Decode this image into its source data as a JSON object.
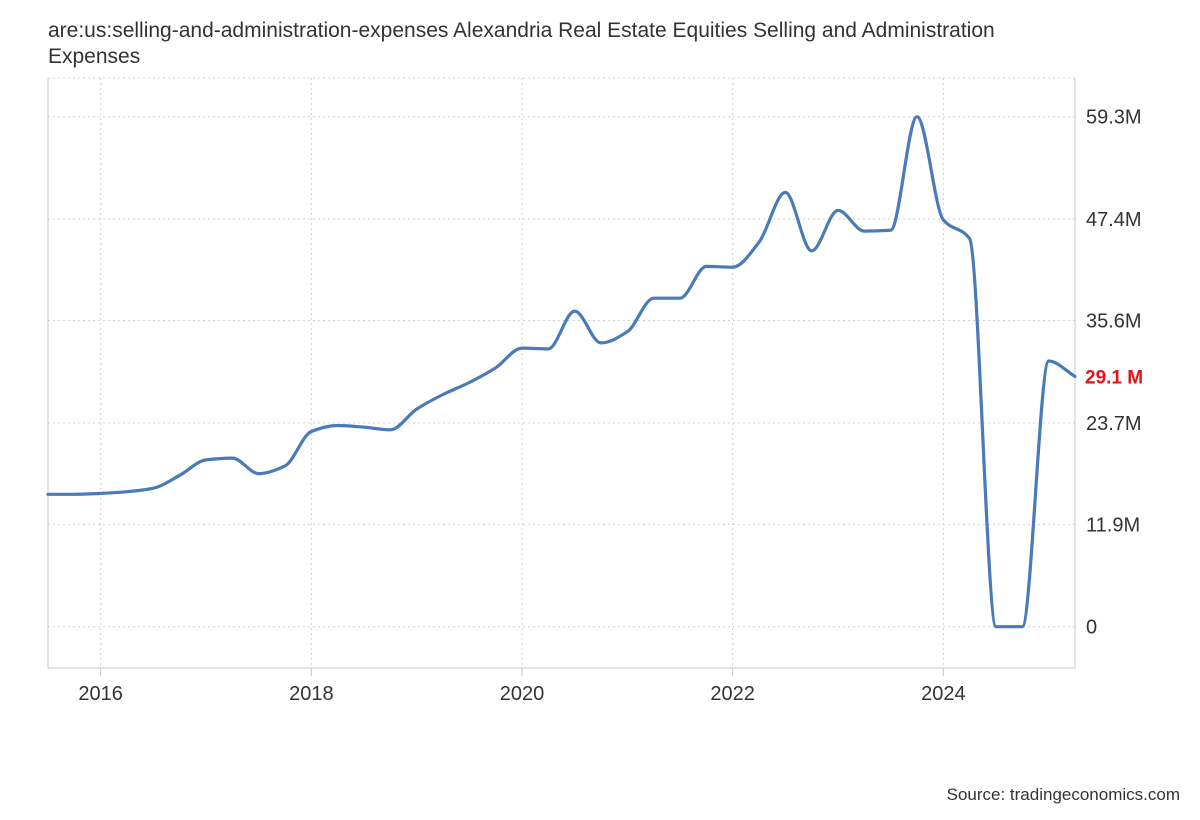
{
  "title": "are:us:selling-and-administration-expenses Alexandria Real Estate Equities Selling and Administration Expenses",
  "source": "Source: tradingeconomics.com",
  "colors": {
    "line": "#4a7ab8",
    "last_value": "#e0161c",
    "grid": "#d0d0d0",
    "axis_text": "#333333"
  },
  "chart_data": {
    "type": "line",
    "title": "are:us:selling-and-administration-expenses Alexandria Real Estate Equities Selling and Administration Expenses",
    "xlabel": "",
    "ylabel": "",
    "x_ticks": [
      "2016",
      "2018",
      "2020",
      "2022",
      "2024"
    ],
    "y_ticks": [
      {
        "value": 0,
        "label": "0"
      },
      {
        "value": 11.9,
        "label": "11.9M"
      },
      {
        "value": 23.7,
        "label": "23.7M"
      },
      {
        "value": 35.6,
        "label": "35.6M"
      },
      {
        "value": 47.4,
        "label": "47.4M"
      },
      {
        "value": 59.3,
        "label": "59.3M"
      }
    ],
    "xlim": [
      2015.5,
      2025.25
    ],
    "ylim": [
      -4.8,
      63.8
    ],
    "grid": true,
    "last_value_label": "29.1 M",
    "series": [
      {
        "units": "M",
        "x": [
          2015.5,
          2015.75,
          2016.0,
          2016.25,
          2016.5,
          2016.75,
          2017.0,
          2017.25,
          2017.5,
          2017.75,
          2018.0,
          2018.25,
          2018.5,
          2018.75,
          2019.0,
          2019.25,
          2019.5,
          2019.75,
          2020.0,
          2020.25,
          2020.5,
          2020.75,
          2021.0,
          2021.25,
          2021.5,
          2021.75,
          2022.0,
          2022.25,
          2022.5,
          2022.75,
          2023.0,
          2023.25,
          2023.5,
          2023.75,
          2024.0,
          2024.25,
          2024.5,
          2024.75,
          2025.0,
          2025.25
        ],
        "values": [
          15.4,
          15.4,
          15.5,
          15.7,
          16.1,
          17.6,
          19.4,
          19.6,
          17.8,
          18.7,
          22.7,
          23.4,
          23.2,
          22.9,
          25.3,
          27.0,
          28.4,
          30.1,
          32.4,
          32.3,
          36.7,
          33.0,
          34.3,
          38.2,
          38.2,
          41.9,
          41.8,
          44.7,
          50.5,
          43.7,
          48.4,
          46.0,
          46.1,
          59.3,
          47.3,
          45.1,
          0.0,
          0.0,
          30.9,
          29.1
        ]
      }
    ]
  }
}
